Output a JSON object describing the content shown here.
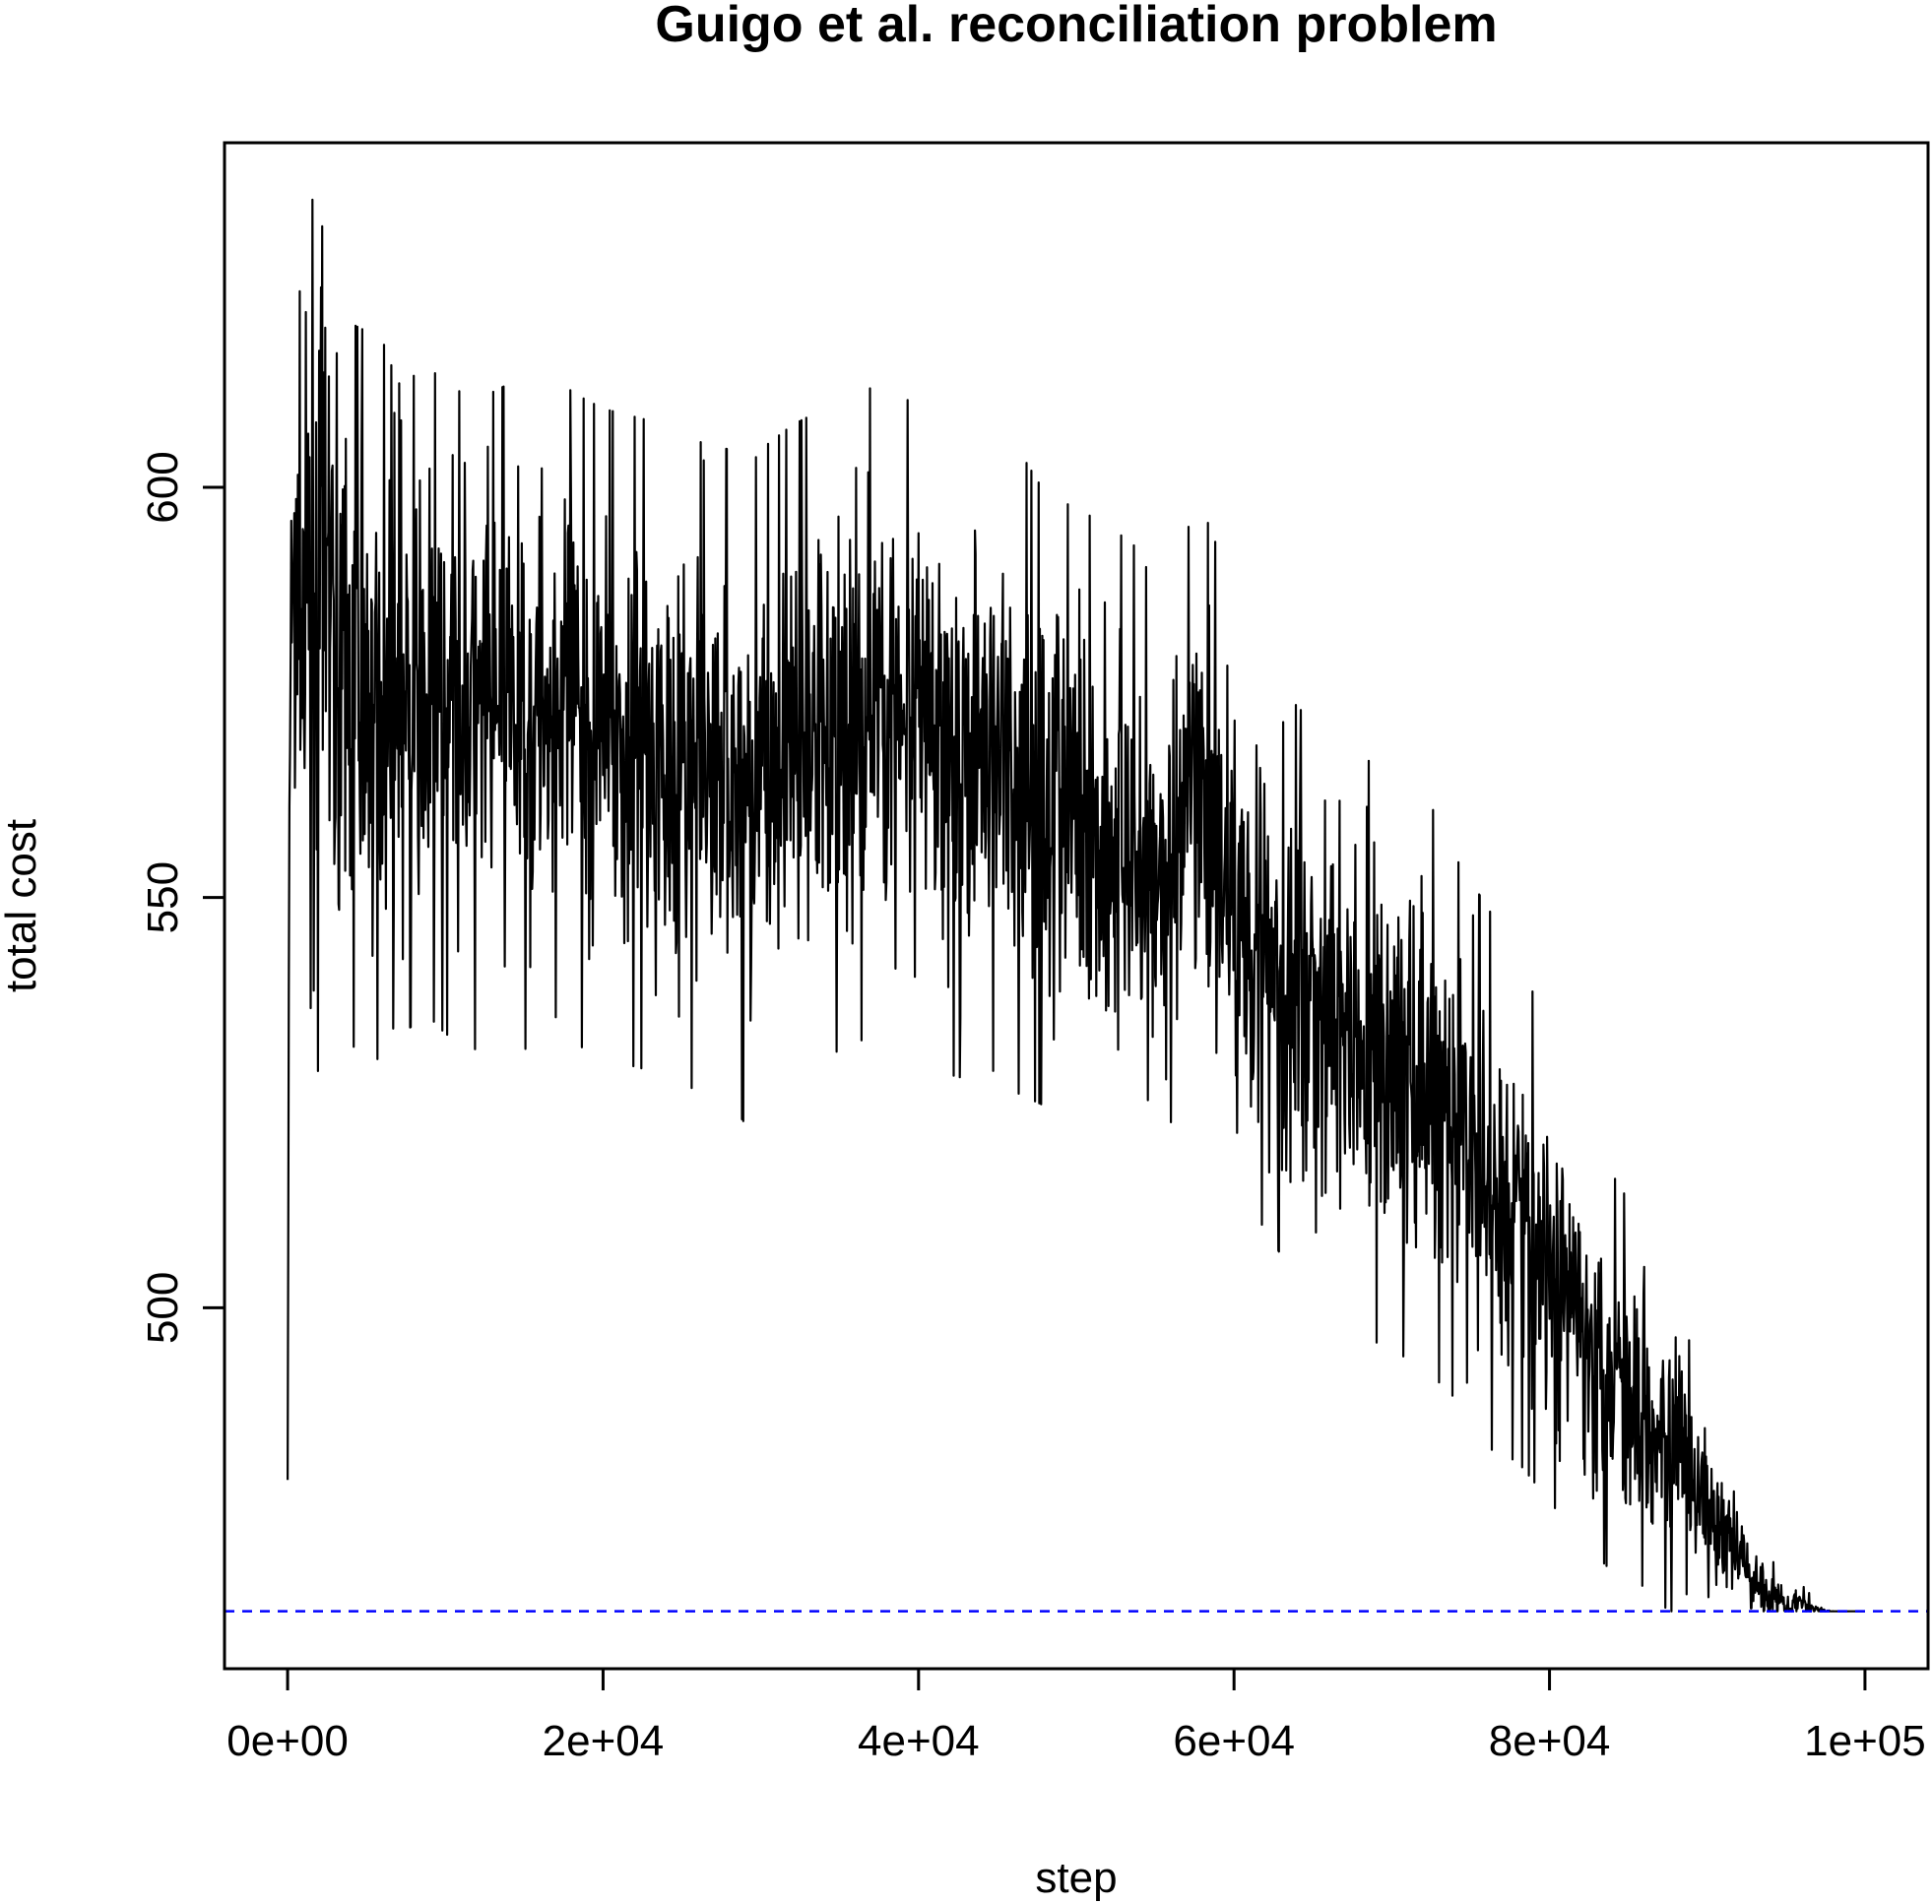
{
  "chart_data": {
    "type": "line",
    "title": "Guigo et al. reconciliation problem",
    "xlabel": "step",
    "ylabel": "total cost",
    "xlim": [
      -4000,
      104000
    ],
    "ylim": [
      456,
      642
    ],
    "x_ticks": [
      {
        "value": 0,
        "label": "0e+00"
      },
      {
        "value": 20000,
        "label": "2e+04"
      },
      {
        "value": 40000,
        "label": "4e+04"
      },
      {
        "value": 60000,
        "label": "6e+04"
      },
      {
        "value": 80000,
        "label": "8e+04"
      },
      {
        "value": 100000,
        "label": "1e+05"
      }
    ],
    "y_ticks": [
      {
        "value": 500,
        "label": "500"
      },
      {
        "value": 550,
        "label": "550"
      },
      {
        "value": 600,
        "label": "600"
      }
    ],
    "grid": false,
    "reference_line": {
      "y": 463,
      "color": "#0000ff",
      "style": "dashed"
    },
    "series": [
      {
        "color": "#000000",
        "x": [
          0,
          100,
          200,
          300,
          400,
          500,
          600,
          700,
          800,
          1000,
          1200,
          1400,
          1600,
          1800,
          2000,
          2200,
          2400,
          2600,
          2800,
          3000,
          4000,
          5000,
          6000,
          7000,
          8000,
          9000,
          10000,
          11000,
          12000,
          13000,
          14000,
          15000,
          16000,
          17000,
          18000,
          19000,
          20000,
          22000,
          24000,
          26000,
          28000,
          29000,
          30000,
          32000,
          34000,
          36000,
          38000,
          40000,
          42000,
          44000,
          45000,
          46000,
          48000,
          50000,
          52000,
          54000,
          55000,
          56000,
          58000,
          60000,
          62000,
          64000,
          66000,
          68000,
          70000,
          72000,
          74000,
          76000,
          78000,
          80000,
          82000,
          84000,
          86000,
          88000,
          90000,
          91000,
          92000,
          93000,
          94000,
          95000,
          96000,
          97000,
          98000,
          99000,
          100000
        ],
        "mid": [
          479,
          555,
          575,
          588,
          590,
          582,
          586,
          588,
          585,
          583,
          580,
          584,
          587,
          582,
          585,
          589,
          595,
          590,
          586,
          580,
          576,
          575,
          574,
          573,
          574,
          575,
          573,
          572,
          571,
          572,
          573,
          571,
          573,
          575,
          572,
          571,
          570,
          569,
          568,
          566,
          565,
          562,
          565,
          568,
          570,
          572,
          573,
          570,
          568,
          567,
          569,
          566,
          562,
          560,
          558,
          555,
          550,
          555,
          560,
          550,
          545,
          538,
          535,
          532,
          530,
          528,
          522,
          516,
          512,
          505,
          498,
          492,
          488,
          482,
          475,
          472,
          470,
          467,
          465,
          464,
          464,
          463,
          463,
          463,
          463
        ],
        "amp": [
          0,
          5,
          15,
          22,
          25,
          22,
          20,
          20,
          20,
          20,
          22,
          22,
          22,
          25,
          25,
          28,
          28,
          25,
          22,
          22,
          20,
          20,
          20,
          18,
          18,
          18,
          18,
          18,
          18,
          18,
          18,
          18,
          18,
          18,
          18,
          18,
          18,
          18,
          18,
          18,
          18,
          18,
          18,
          18,
          18,
          18,
          18,
          18,
          18,
          18,
          18,
          18,
          17,
          17,
          17,
          17,
          17,
          17,
          17,
          17,
          16,
          16,
          16,
          16,
          16,
          16,
          15,
          15,
          14,
          13,
          12,
          11,
          10,
          9,
          6,
          5,
          4,
          3,
          2,
          1.5,
          1,
          0.5,
          0,
          0,
          0
        ]
      }
    ]
  }
}
